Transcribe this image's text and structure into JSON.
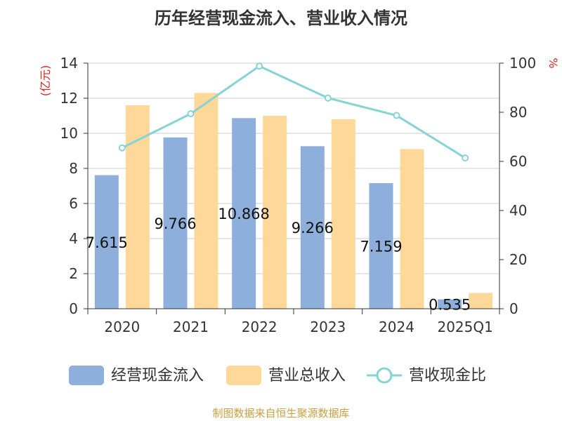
{
  "colors": {
    "cash_bar": "#8eaedb",
    "revenue_bar": "#fed898",
    "ratio_line": "#86d3d6",
    "axis": "#333333",
    "grid": "#cccccc",
    "title": "#333333",
    "unit_red": "#dd2222",
    "source": "#c8a040"
  },
  "chart_data": {
    "type": "bar",
    "title": "历年经营现金流入、营业收入情况",
    "categories": [
      "2020",
      "2021",
      "2022",
      "2023",
      "2024",
      "2025Q1"
    ],
    "y_left": {
      "unit": "(亿元)",
      "ylim": [
        0,
        14
      ],
      "ticks": [
        "0",
        "2",
        "4",
        "6",
        "8",
        "10",
        "12",
        "14"
      ]
    },
    "y_right": {
      "unit": "%",
      "ylim": [
        0,
        100
      ],
      "ticks": [
        "0",
        "20",
        "40",
        "60",
        "80",
        "100"
      ]
    },
    "series": [
      {
        "name": "经营现金流入",
        "kind": "bar",
        "axis": "left",
        "values": [
          7.615,
          9.766,
          10.868,
          9.266,
          7.159,
          0.535
        ],
        "labels": [
          "7.615",
          "9.766",
          "10.868",
          "9.266",
          "7.159",
          "0.535"
        ]
      },
      {
        "name": "营业总收入",
        "kind": "bar",
        "axis": "left",
        "values": [
          11.6,
          12.3,
          11.0,
          10.8,
          9.1,
          0.9
        ]
      },
      {
        "name": "营收现金比",
        "kind": "line",
        "axis": "right",
        "values": [
          65.5,
          79.4,
          98.8,
          85.8,
          78.7,
          61.4
        ]
      }
    ],
    "grid": true,
    "legend_position": "bottom"
  },
  "footer": {
    "source": "制图数据来自恒生聚源数据库"
  }
}
